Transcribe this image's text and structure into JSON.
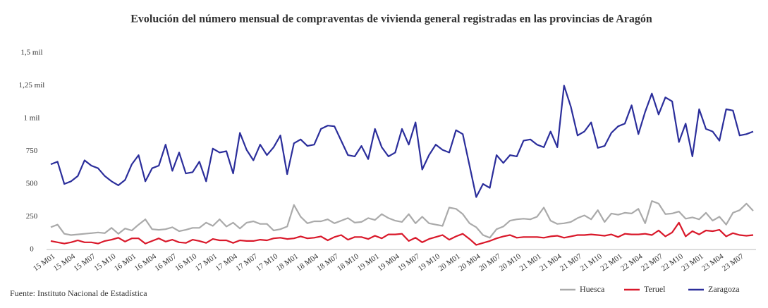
{
  "chart_data": {
    "type": "line",
    "title": "Evolución del número mensual de compraventas de vivienda general registradas en las provincias de Aragón",
    "source": "Fuente: Instituto Nacional de Estadística",
    "categories": [
      "15 M01",
      null,
      null,
      "15 M04",
      null,
      null,
      "15 M07",
      null,
      null,
      "15 M10",
      null,
      null,
      "16 M01",
      null,
      null,
      "16 M04",
      null,
      null,
      "16 M07",
      null,
      null,
      "16 M10",
      null,
      null,
      "17 M01",
      null,
      null,
      "17 M04",
      null,
      null,
      "17 M07",
      null,
      null,
      "17 M10",
      null,
      null,
      "18 M01",
      null,
      null,
      "18 M04",
      null,
      null,
      "18 M07",
      null,
      null,
      "18 M10",
      null,
      null,
      "19 M01",
      null,
      null,
      "19 M04",
      null,
      null,
      "19 M07",
      null,
      null,
      "19 M10",
      null,
      null,
      "20 M01",
      null,
      null,
      "20 M04",
      null,
      null,
      "20 M07",
      null,
      null,
      "20 M10",
      null,
      null,
      "21 M01",
      null,
      null,
      "21 M04",
      null,
      null,
      "21 M07",
      null,
      null,
      "21 M10",
      null,
      null,
      "22 M01",
      null,
      null,
      "22 M04",
      null,
      null,
      "22 M07",
      null,
      null,
      "22 M10",
      null,
      null,
      "23 M01",
      null,
      null,
      "23 M04",
      null,
      null,
      "23 M07",
      null,
      null
    ],
    "series": [
      {
        "name": "Huesca",
        "color": "#aaaaaa",
        "values": [
          170,
          190,
          120,
          110,
          115,
          120,
          125,
          130,
          125,
          165,
          120,
          160,
          145,
          190,
          230,
          155,
          150,
          155,
          170,
          140,
          150,
          165,
          165,
          205,
          180,
          230,
          175,
          205,
          160,
          205,
          215,
          195,
          195,
          145,
          155,
          175,
          340,
          250,
          200,
          215,
          215,
          230,
          200,
          220,
          240,
          205,
          210,
          240,
          225,
          270,
          240,
          220,
          210,
          270,
          200,
          250,
          200,
          190,
          180,
          320,
          310,
          270,
          200,
          170,
          110,
          90,
          155,
          175,
          220,
          230,
          235,
          230,
          250,
          320,
          220,
          195,
          200,
          210,
          240,
          260,
          230,
          300,
          210,
          275,
          265,
          280,
          275,
          310,
          200,
          370,
          350,
          270,
          275,
          290,
          235,
          245,
          230,
          280,
          220,
          250,
          190,
          280,
          300,
          350,
          295
        ]
      },
      {
        "name": "Teruel",
        "color": "#d9182a",
        "values": [
          65,
          55,
          45,
          55,
          70,
          55,
          55,
          45,
          65,
          75,
          90,
          60,
          85,
          85,
          45,
          65,
          85,
          60,
          75,
          55,
          50,
          75,
          65,
          50,
          80,
          70,
          70,
          50,
          70,
          65,
          65,
          75,
          70,
          85,
          90,
          80,
          85,
          100,
          85,
          90,
          100,
          70,
          95,
          110,
          75,
          95,
          95,
          80,
          105,
          85,
          115,
          115,
          120,
          65,
          90,
          55,
          80,
          95,
          110,
          75,
          100,
          120,
          80,
          35,
          50,
          65,
          85,
          100,
          110,
          90,
          95,
          95,
          95,
          90,
          100,
          105,
          90,
          100,
          110,
          110,
          115,
          110,
          105,
          115,
          95,
          120,
          115,
          115,
          120,
          110,
          145,
          100,
          130,
          205,
          100,
          140,
          115,
          145,
          140,
          150,
          100,
          125,
          110,
          105,
          110
        ]
      },
      {
        "name": "Zaragoza",
        "color": "#2b2e9b",
        "values": [
          650,
          670,
          500,
          520,
          560,
          680,
          640,
          620,
          560,
          520,
          490,
          530,
          650,
          720,
          520,
          620,
          640,
          800,
          600,
          740,
          580,
          590,
          670,
          520,
          770,
          740,
          750,
          580,
          890,
          760,
          680,
          800,
          720,
          780,
          870,
          575,
          810,
          840,
          790,
          800,
          920,
          945,
          940,
          830,
          720,
          710,
          790,
          690,
          920,
          780,
          710,
          740,
          920,
          800,
          970,
          610,
          720,
          800,
          760,
          740,
          910,
          880,
          640,
          400,
          500,
          470,
          720,
          660,
          720,
          710,
          830,
          840,
          800,
          780,
          900,
          780,
          1250,
          1090,
          870,
          900,
          970,
          775,
          790,
          890,
          940,
          960,
          1100,
          880,
          1050,
          1190,
          1030,
          1160,
          1130,
          820,
          960,
          710,
          1070,
          920,
          900,
          830,
          1070,
          1060,
          870,
          880,
          900
        ]
      }
    ],
    "ylim": [
      0,
      1500
    ],
    "yticks": [
      0,
      250,
      500,
      750,
      {
        "value": 1000,
        "label": "1 mil"
      },
      {
        "value": 1250,
        "label": "1,25 mil"
      },
      {
        "value": 1500,
        "label": "1,5 mil"
      }
    ],
    "grid": false,
    "legend": "bottom-right"
  }
}
